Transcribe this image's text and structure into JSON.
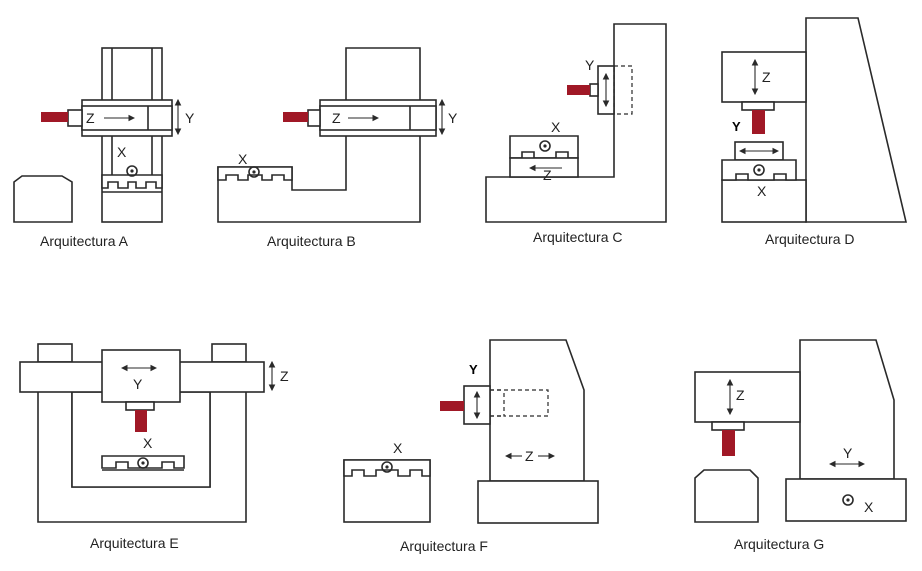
{
  "figure": {
    "tool_color": "#a01826",
    "line_color": "#2a2a2a",
    "panels": [
      {
        "caption": "Arquitectura A",
        "axes": {
          "x": "X",
          "y": "Y",
          "z": "Z"
        }
      },
      {
        "caption": "Arquitectura B",
        "axes": {
          "x": "X",
          "y": "Y",
          "z": "Z"
        }
      },
      {
        "caption": "Arquitectura C",
        "axes": {
          "x": "X",
          "y": "Y",
          "z": "Z"
        }
      },
      {
        "caption": "Arquitectura D",
        "axes": {
          "x": "X",
          "y": "Y",
          "z": "Z"
        }
      },
      {
        "caption": "Arquitectura E",
        "axes": {
          "x": "X",
          "y": "Y",
          "z": "Z"
        }
      },
      {
        "caption": "Arquitectura F",
        "axes": {
          "x": "X",
          "y": "Y",
          "z": "Z"
        }
      },
      {
        "caption": "Arquitectura G",
        "axes": {
          "x": "X",
          "y": "Y",
          "z": "Z"
        }
      }
    ]
  }
}
